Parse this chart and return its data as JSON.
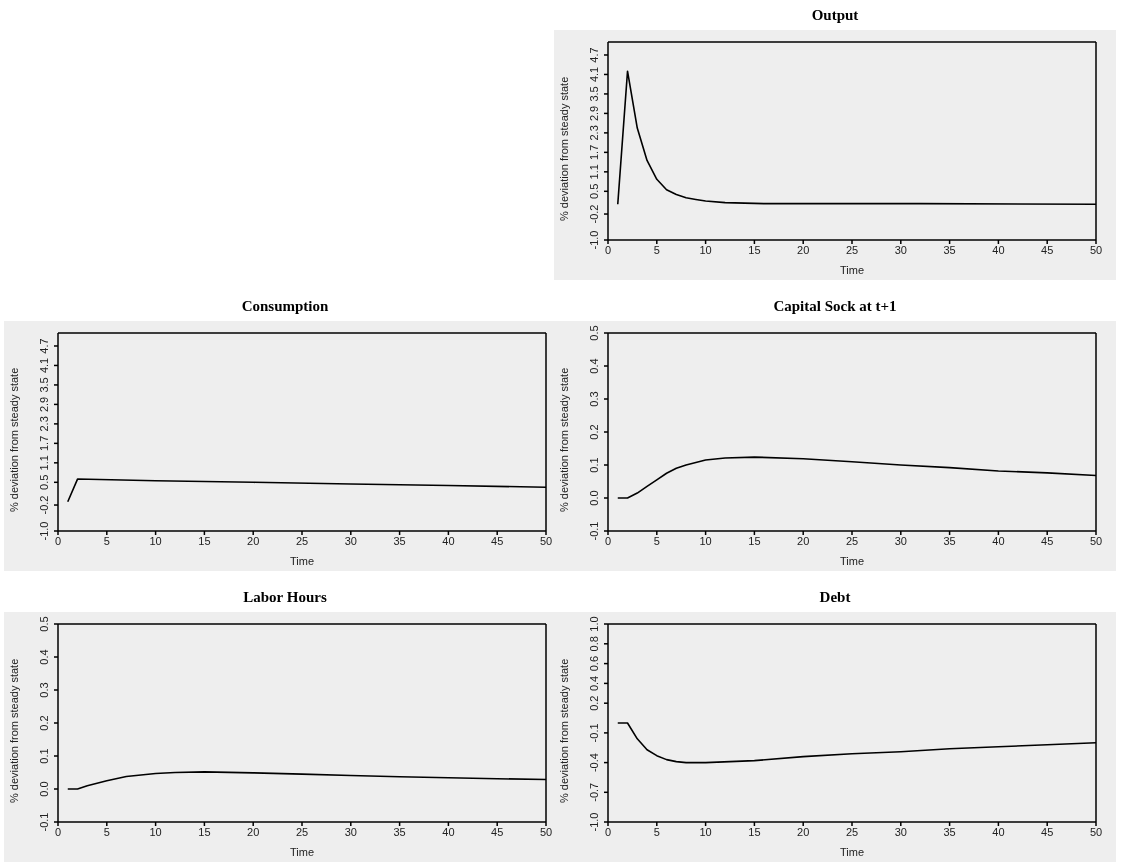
{
  "chart_data": [
    {
      "type": "line",
      "title": "Output",
      "xlabel": "Time",
      "ylabel": "% deviation from steady state",
      "color": "#000000",
      "x": [
        1,
        2,
        3,
        4,
        5,
        6,
        7,
        8,
        9,
        10,
        12,
        16,
        32,
        50
      ],
      "values": [
        0.1,
        4.2,
        2.45,
        1.45,
        0.87,
        0.55,
        0.4,
        0.3,
        0.25,
        0.2,
        0.15,
        0.12,
        0.12,
        0.1
      ],
      "xlim": [
        0,
        50
      ],
      "xticks": [
        0,
        5,
        10,
        15,
        20,
        25,
        30,
        35,
        40,
        45,
        50
      ],
      "ylim": [
        -1.0,
        5.1
      ],
      "yticks": [
        {
          "value": -1.0,
          "label": "-1.0"
        },
        -0.2,
        0.5,
        1.1,
        1.7,
        2.3,
        2.9,
        3.5,
        4.1,
        4.7
      ]
    },
    {
      "type": "line",
      "title": "Consumption",
      "xlabel": "Time",
      "ylabel": "% deviation from steady state",
      "color": "#000000",
      "x": [
        1,
        2,
        10,
        20,
        30,
        40,
        50
      ],
      "values": [
        -0.1,
        0.6,
        0.55,
        0.5,
        0.45,
        0.4,
        0.35
      ],
      "xlim": [
        0,
        50
      ],
      "xticks": [
        0,
        5,
        10,
        15,
        20,
        25,
        30,
        35,
        40,
        45,
        50
      ],
      "ylim": [
        -1.0,
        5.1
      ],
      "yticks": [
        {
          "value": -1.0,
          "label": "-1.0"
        },
        -0.2,
        0.5,
        1.1,
        1.7,
        2.3,
        2.9,
        3.5,
        4.1,
        4.7
      ]
    },
    {
      "type": "line",
      "title": "Capital Sock at t+1",
      "xlabel": "Time",
      "ylabel": "% deviation from steady state",
      "color": "#000000",
      "x": [
        1,
        2,
        3,
        4,
        5,
        6,
        7,
        8,
        10,
        12,
        15,
        20,
        25,
        30,
        35,
        40,
        45,
        50
      ],
      "values": [
        0,
        0,
        0.015,
        0.035,
        0.055,
        0.075,
        0.09,
        0.1,
        0.115,
        0.121,
        0.124,
        0.119,
        0.11,
        0.1,
        0.092,
        0.082,
        0.076,
        0.068
      ],
      "xlim": [
        0,
        50
      ],
      "xticks": [
        0,
        5,
        10,
        15,
        20,
        25,
        30,
        35,
        40,
        45,
        50
      ],
      "ylim": [
        -0.1,
        0.5
      ],
      "yticks": [
        -0.1,
        {
          "value": 0,
          "label": "0.0"
        },
        0.1,
        0.2,
        0.3,
        0.4,
        0.5
      ]
    },
    {
      "type": "line",
      "title": "Labor Hours",
      "xlabel": "Time",
      "ylabel": "% deviation from steady state",
      "color": "#000000",
      "x": [
        1,
        2,
        3,
        5,
        7,
        10,
        12,
        15,
        20,
        25,
        30,
        35,
        40,
        45,
        50
      ],
      "values": [
        0,
        0,
        0.01,
        0.025,
        0.038,
        0.047,
        0.05,
        0.052,
        0.049,
        0.045,
        0.041,
        0.037,
        0.034,
        0.031,
        0.029
      ],
      "xlim": [
        0,
        50
      ],
      "xticks": [
        0,
        5,
        10,
        15,
        20,
        25,
        30,
        35,
        40,
        45,
        50
      ],
      "ylim": [
        -0.1,
        0.5
      ],
      "yticks": [
        -0.1,
        {
          "value": 0,
          "label": "0.0"
        },
        0.1,
        0.2,
        0.3,
        0.4,
        0.5
      ]
    },
    {
      "type": "line",
      "title": "Debt",
      "xlabel": "Time",
      "ylabel": "% deviation from steady state",
      "color": "#000000",
      "x": [
        1,
        2,
        3,
        4,
        5,
        6,
        7,
        8,
        10,
        15,
        20,
        25,
        30,
        35,
        40,
        45,
        50
      ],
      "values": [
        0,
        0,
        -0.16,
        -0.27,
        -0.33,
        -0.37,
        -0.39,
        -0.4,
        -0.4,
        -0.38,
        -0.34,
        -0.31,
        -0.29,
        -0.26,
        -0.24,
        -0.22,
        -0.2
      ],
      "xlim": [
        0,
        50
      ],
      "xticks": [
        0,
        5,
        10,
        15,
        20,
        25,
        30,
        35,
        40,
        45,
        50
      ],
      "ylim": [
        -1.0,
        1.0
      ],
      "yticks": [
        {
          "value": -1.0,
          "label": "-1.0"
        },
        -0.7,
        -0.4,
        -0.1,
        0.2,
        0.4,
        0.6,
        0.8,
        {
          "value": 1.0,
          "label": "1.0"
        }
      ]
    }
  ]
}
